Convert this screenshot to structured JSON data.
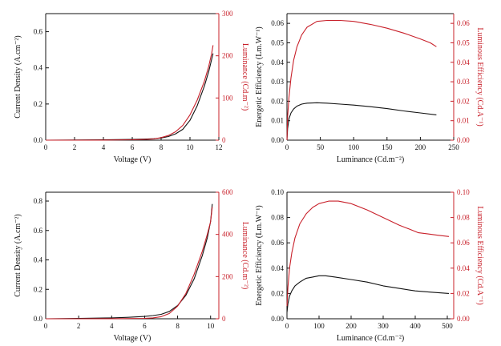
{
  "colors": {
    "black": "#111111",
    "red": "#c8202a"
  },
  "chart_data": [
    {
      "type": "line",
      "xlabel": "Voltage (V)",
      "ylabel_left": "Current Density  (A.cm⁻²)",
      "ylabel_right": "Luminance (Cd.m⁻²)",
      "xlim": [
        0,
        12
      ],
      "ylim_left": [
        0,
        0.7
      ],
      "ylim_right": [
        0,
        300
      ],
      "xticks": [
        0,
        2,
        4,
        6,
        8,
        10,
        12
      ],
      "yticks_left": [
        0.0,
        0.2,
        0.4,
        0.6
      ],
      "yticks_right": [
        0,
        100,
        200,
        300
      ],
      "series": [
        {
          "axis": "left",
          "color": "black",
          "x": [
            0,
            2,
            4,
            6,
            7,
            7.5,
            8,
            8.5,
            9,
            9.5,
            10,
            10.5,
            11,
            11.3,
            11.6
          ],
          "y": [
            0,
            0.001,
            0.002,
            0.004,
            0.006,
            0.008,
            0.012,
            0.02,
            0.035,
            0.06,
            0.11,
            0.19,
            0.3,
            0.38,
            0.48
          ]
        },
        {
          "axis": "right",
          "color": "red",
          "x": [
            0,
            2,
            4,
            6,
            7,
            7.5,
            8,
            8.5,
            9,
            9.5,
            10,
            10.5,
            11,
            11.3,
            11.5,
            11.6
          ],
          "y": [
            0,
            0,
            0.2,
            1,
            2,
            3,
            6,
            11,
            20,
            35,
            60,
            95,
            140,
            175,
            205,
            225
          ]
        }
      ]
    },
    {
      "type": "line",
      "xlabel": "Luminance (Cd.m⁻²)",
      "ylabel_left": "Energetic Efficiency (Lm.W⁻¹)",
      "ylabel_right": "Luminous Efficiency (Cd.A⁻¹)",
      "xlim": [
        0,
        250
      ],
      "ylim_left": [
        0,
        0.065
      ],
      "ylim_right": [
        0,
        0.065
      ],
      "xticks": [
        0,
        50,
        100,
        150,
        200,
        250
      ],
      "yticks_left": [
        0.0,
        0.01,
        0.02,
        0.03,
        0.04,
        0.05,
        0.06
      ],
      "yticks_right": [
        0.0,
        0.01,
        0.02,
        0.03,
        0.04,
        0.05,
        0.06
      ],
      "series": [
        {
          "axis": "left",
          "color": "black",
          "x": [
            0,
            1,
            3,
            6,
            10,
            15,
            22,
            30,
            45,
            60,
            80,
            100,
            125,
            150,
            175,
            200,
            224
          ],
          "y": [
            0,
            0.006,
            0.011,
            0.014,
            0.016,
            0.0175,
            0.0185,
            0.019,
            0.0192,
            0.019,
            0.0185,
            0.018,
            0.0172,
            0.0162,
            0.015,
            0.014,
            0.013
          ]
        },
        {
          "axis": "right",
          "color": "red",
          "x": [
            0,
            1,
            3,
            6,
            10,
            15,
            22,
            30,
            45,
            60,
            80,
            100,
            125,
            150,
            175,
            200,
            215,
            224
          ],
          "y": [
            0,
            0.012,
            0.022,
            0.032,
            0.041,
            0.048,
            0.054,
            0.058,
            0.061,
            0.0615,
            0.0615,
            0.061,
            0.0595,
            0.0575,
            0.055,
            0.052,
            0.05,
            0.048
          ]
        }
      ]
    },
    {
      "type": "line",
      "xlabel": "Voltage (V)",
      "ylabel_left": "Current Density  (A.cm⁻²)",
      "ylabel_right": "Luminance (Cd.m⁻²)",
      "xlim": [
        0,
        10.5
      ],
      "ylim_left": [
        0,
        0.86
      ],
      "ylim_right": [
        0,
        600
      ],
      "xticks": [
        0,
        2,
        4,
        6,
        8,
        10
      ],
      "yticks_left": [
        0.0,
        0.2,
        0.4,
        0.6,
        0.8
      ],
      "yticks_right": [
        0,
        200,
        400,
        600
      ],
      "series": [
        {
          "axis": "left",
          "color": "black",
          "x": [
            0,
            2,
            4,
            5,
            6,
            6.5,
            7,
            7.5,
            8,
            8.5,
            9,
            9.5,
            9.8,
            10,
            10.1
          ],
          "y": [
            0,
            0.002,
            0.006,
            0.01,
            0.016,
            0.022,
            0.03,
            0.05,
            0.09,
            0.16,
            0.27,
            0.43,
            0.55,
            0.66,
            0.78
          ]
        },
        {
          "axis": "right",
          "color": "red",
          "x": [
            0,
            2,
            4,
            6,
            6.5,
            7,
            7.5,
            8,
            8.5,
            9,
            9.5,
            9.8,
            10,
            10.1
          ],
          "y": [
            0,
            0,
            0.5,
            2,
            4,
            10,
            25,
            60,
            120,
            210,
            320,
            400,
            460,
            530
          ]
        }
      ]
    },
    {
      "type": "line",
      "xlabel": "Luminance (Cd.m⁻²)",
      "ylabel_left": "Energetic Efficiency (Lm.W⁻¹)",
      "ylabel_right": "Luminous Efficiency (Cd.A⁻¹)",
      "xlim": [
        0,
        520
      ],
      "ylim_left": [
        0,
        0.1
      ],
      "ylim_right": [
        0,
        0.1
      ],
      "xticks": [
        0,
        100,
        200,
        300,
        400,
        500
      ],
      "yticks_left": [
        0.0,
        0.02,
        0.04,
        0.06,
        0.08,
        0.1
      ],
      "yticks_right": [
        0.0,
        0.02,
        0.04,
        0.06,
        0.08,
        0.1
      ],
      "series": [
        {
          "axis": "left",
          "color": "black",
          "x": [
            0,
            3,
            8,
            15,
            25,
            40,
            60,
            80,
            100,
            120,
            150,
            200,
            250,
            300,
            350,
            400,
            450,
            505
          ],
          "y": [
            0.005,
            0.012,
            0.018,
            0.022,
            0.026,
            0.029,
            0.032,
            0.033,
            0.034,
            0.034,
            0.033,
            0.031,
            0.029,
            0.026,
            0.024,
            0.022,
            0.021,
            0.02
          ]
        },
        {
          "axis": "right",
          "color": "red",
          "x": [
            0,
            3,
            8,
            15,
            25,
            40,
            60,
            80,
            100,
            130,
            160,
            200,
            250,
            300,
            350,
            380,
            410,
            440,
            470,
            505
          ],
          "y": [
            0.01,
            0.025,
            0.04,
            0.052,
            0.064,
            0.075,
            0.083,
            0.088,
            0.091,
            0.093,
            0.093,
            0.091,
            0.086,
            0.08,
            0.074,
            0.071,
            0.068,
            0.067,
            0.066,
            0.065
          ]
        }
      ]
    }
  ]
}
